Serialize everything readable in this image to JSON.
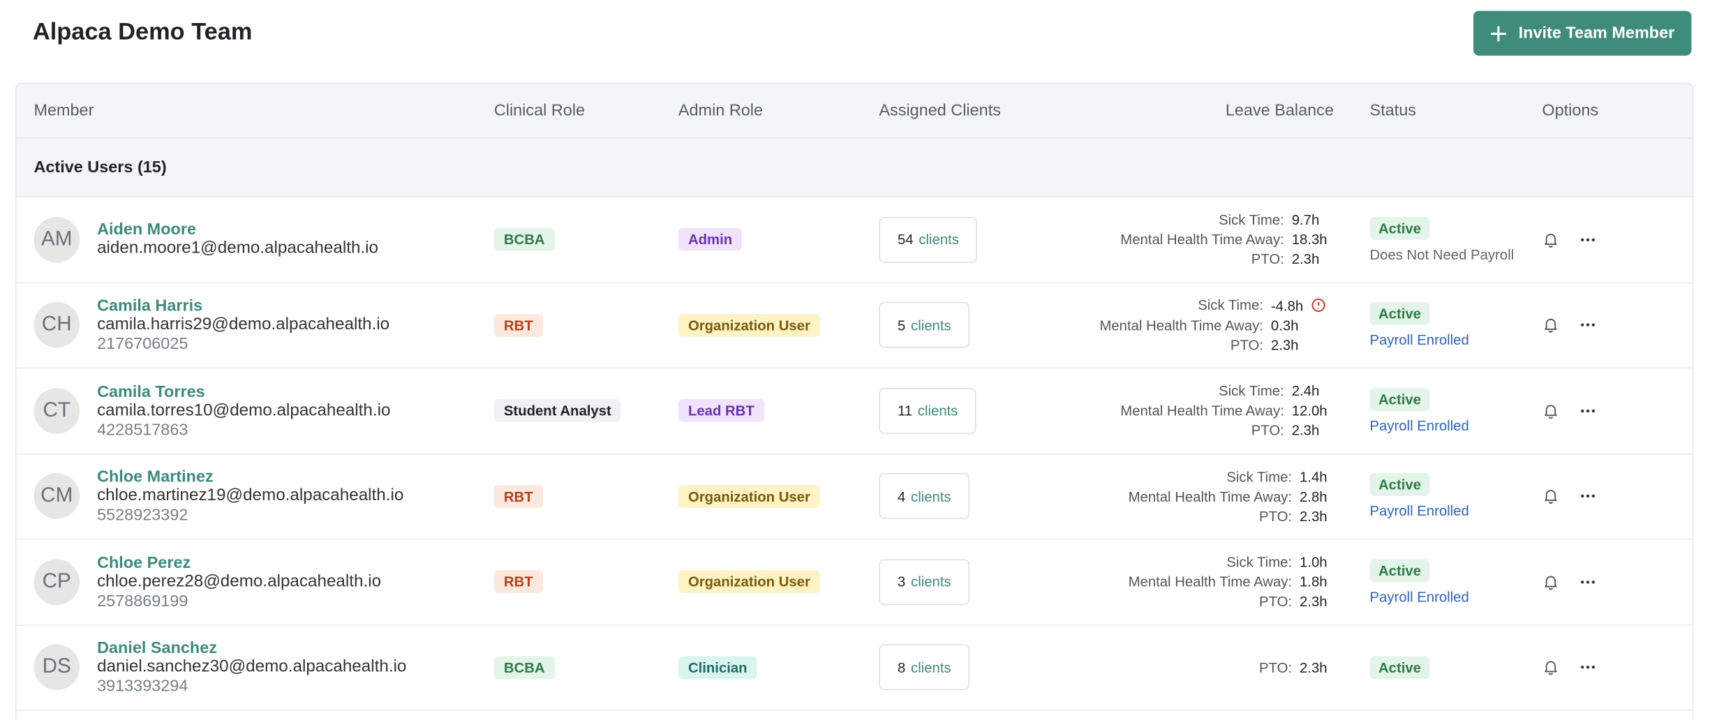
{
  "header": {
    "title": "Alpaca Demo Team",
    "button": "Invite Team Member"
  },
  "table": {
    "columns": [
      "Member",
      "Clinical Role",
      "Admin Role",
      "Assigned Clients",
      "Leave Balance",
      "Status",
      "Options"
    ],
    "group": "Active Users (15)",
    "rows": [
      {
        "initials": "AM",
        "name": "Aiden Moore",
        "email": "aiden.moore1@demo.alpacahealth.io",
        "phone": null,
        "clinical_role": "BCBA",
        "admin_role": "Admin",
        "clients_count": "54",
        "clients_word": "clients",
        "leave": [
          {
            "label": "Sick Time:",
            "value": "9.7h"
          },
          {
            "label": "Mental Health Time Away:",
            "value": "18.3h"
          },
          {
            "label": "PTO:",
            "value": "2.3h"
          }
        ],
        "status": "Active",
        "note": "Does Not Need Payroll"
      },
      {
        "initials": "CH",
        "name": "Camila Harris",
        "email": "camila.harris29@demo.alpacahealth.io",
        "phone": "2176706025",
        "clinical_role": "RBT",
        "admin_role": "Organization User",
        "clients_count": "5",
        "clients_word": "clients",
        "leave": [
          {
            "label": "Sick Time:",
            "value": "-4.8h"
          },
          {
            "label": "Mental Health Time Away:",
            "value": "0.3h"
          },
          {
            "label": "PTO:",
            "value": "2.3h"
          }
        ],
        "status": "Active",
        "note": "Payroll Enrolled"
      },
      {
        "initials": "CT",
        "name": "Camila Torres",
        "email": "camila.torres10@demo.alpacahealth.io",
        "phone": "4228517863",
        "clinical_role": "Student Analyst",
        "admin_role": "Lead RBT",
        "clients_count": "11",
        "clients_word": "clients",
        "leave": [
          {
            "label": "Sick Time:",
            "value": "2.4h"
          },
          {
            "label": "Mental Health Time Away:",
            "value": "12.0h"
          },
          {
            "label": "PTO:",
            "value": "2.3h"
          }
        ],
        "status": "Active",
        "note": "Payroll Enrolled"
      },
      {
        "initials": "CM",
        "name": "Chloe Martinez",
        "email": "chloe.martinez19@demo.alpacahealth.io",
        "phone": "5528923392",
        "clinical_role": "RBT",
        "admin_role": "Organization User",
        "clients_count": "4",
        "clients_word": "clients",
        "leave": [
          {
            "label": "Sick Time:",
            "value": "1.4h"
          },
          {
            "label": "Mental Health Time Away:",
            "value": "2.8h"
          },
          {
            "label": "PTO:",
            "value": "2.3h"
          }
        ],
        "status": "Active",
        "note": "Payroll Enrolled"
      },
      {
        "initials": "CP",
        "name": "Chloe Perez",
        "email": "chloe.perez28@demo.alpacahealth.io",
        "phone": "2578869199",
        "clinical_role": "RBT",
        "admin_role": "Organization User",
        "clients_count": "3",
        "clients_word": "clients",
        "leave": [
          {
            "label": "Sick Time:",
            "value": "1.0h"
          },
          {
            "label": "Mental Health Time Away:",
            "value": "1.8h"
          },
          {
            "label": "PTO:",
            "value": "2.3h"
          }
        ],
        "status": "Active",
        "note": "Payroll Enrolled"
      },
      {
        "initials": "DS",
        "name": "Daniel Sanchez",
        "email": "daniel.sanchez30@demo.alpacahealth.io",
        "phone": "3913393294",
        "clinical_role": "BCBA",
        "admin_role": "Clinician",
        "clients_count": "8",
        "clients_word": "clients",
        "leave": [
          {
            "label": "PTO:",
            "value": "2.3h"
          }
        ],
        "status": "Active",
        "note": null
      }
    ]
  }
}
